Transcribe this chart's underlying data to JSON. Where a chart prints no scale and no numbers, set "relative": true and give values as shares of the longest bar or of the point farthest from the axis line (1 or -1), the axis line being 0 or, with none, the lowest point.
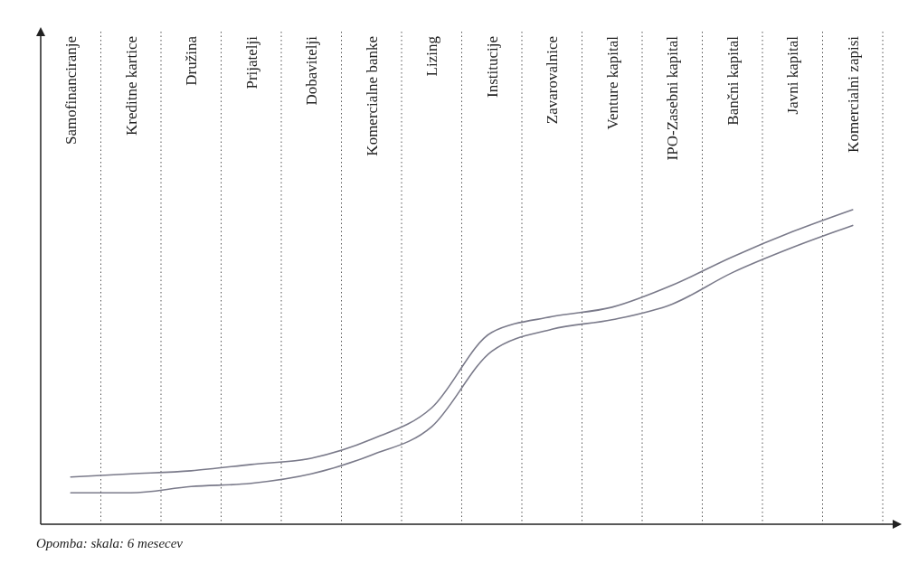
{
  "chart_data": {
    "type": "line",
    "relative": true,
    "categories": [
      "Samofinanciranje",
      "Kreditne kartice",
      "Družina",
      "Prijatelji",
      "Dobavitelji",
      "Komercialne banke",
      "Lizing",
      "Institucije",
      "Zavarovalnice",
      "Venture kapital",
      "IPO-Zasebni kapital",
      "Bančni kapital",
      "Javni kapital",
      "Komercialni zapisi"
    ],
    "series": [
      {
        "color": "#7a7a8a",
        "values": [
          0.15,
          0.16,
          0.17,
          0.19,
          0.21,
          0.27,
          0.37,
          0.61,
          0.66,
          0.69,
          0.76,
          0.85,
          0.93,
          1.0
        ]
      },
      {
        "color": "#7a7a8a",
        "values": [
          0.1,
          0.1,
          0.12,
          0.13,
          0.16,
          0.22,
          0.31,
          0.55,
          0.62,
          0.65,
          0.7,
          0.8,
          0.88,
          0.95
        ]
      }
    ],
    "grid": "x",
    "marker": "none",
    "line_style": "solid",
    "annotations": [
      "Opomba: skala: 6 mesecev"
    ]
  }
}
